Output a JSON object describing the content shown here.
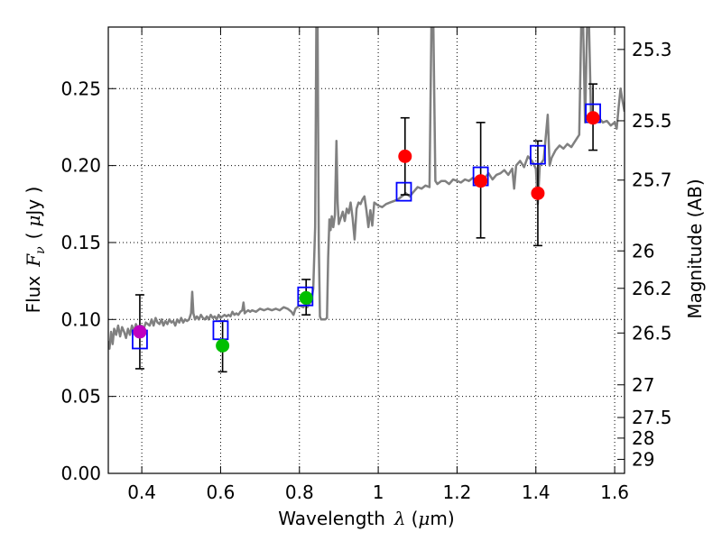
{
  "chart_data": {
    "type": "scatter",
    "xlabel": "Wavelength",
    "xlabel_symbol": "λ",
    "xlabel_unit_open": "(",
    "xlabel_unit_mu": "μ",
    "xlabel_unit_rest": "m)",
    "ylabel": "Flux",
    "ylabel_symbol": "F",
    "ylabel_symbol_sub": "ν",
    "ylabel_unit_open": "(",
    "ylabel_unit_mu": "μ",
    "ylabel_unit_rest": "Jy )",
    "y2label": "Magnitude (AB)",
    "xlim": [
      0.315,
      1.625
    ],
    "ylim": [
      0.0,
      0.29
    ],
    "grid": true,
    "x_ticks": [
      {
        "value": 0.4,
        "label": "0.4"
      },
      {
        "value": 0.6,
        "label": "0.6"
      },
      {
        "value": 0.8,
        "label": "0.8"
      },
      {
        "value": 1.0,
        "label": "1"
      },
      {
        "value": 1.2,
        "label": "1.2"
      },
      {
        "value": 1.4,
        "label": "1.4"
      },
      {
        "value": 1.6,
        "label": "1.6"
      }
    ],
    "y_ticks": [
      {
        "value": 0.0,
        "label": "0.00"
      },
      {
        "value": 0.05,
        "label": "0.05"
      },
      {
        "value": 0.1,
        "label": "0.10"
      },
      {
        "value": 0.15,
        "label": "0.15"
      },
      {
        "value": 0.2,
        "label": "0.20"
      },
      {
        "value": 0.25,
        "label": "0.25"
      }
    ],
    "y2_ticks": [
      {
        "mag": 25.3,
        "label": "25.3"
      },
      {
        "mag": 25.5,
        "label": "25.5"
      },
      {
        "mag": 25.7,
        "label": "25.7"
      },
      {
        "mag": 26.0,
        "label": "26"
      },
      {
        "mag": 26.2,
        "label": "26.2"
      },
      {
        "mag": 26.5,
        "label": "26.5"
      },
      {
        "mag": 27.0,
        "label": "27"
      },
      {
        "mag": 27.5,
        "label": "27.5"
      },
      {
        "mag": 28.0,
        "label": "28"
      },
      {
        "mag": 29.0,
        "label": "29"
      }
    ],
    "spectrum": {
      "name": "model spectrum",
      "color": "#808080",
      "points": [
        [
          0.315,
          0.086
        ],
        [
          0.318,
          0.081
        ],
        [
          0.322,
          0.092
        ],
        [
          0.326,
          0.084
        ],
        [
          0.33,
          0.094
        ],
        [
          0.335,
          0.09
        ],
        [
          0.34,
          0.096
        ],
        [
          0.345,
          0.089
        ],
        [
          0.35,
          0.095
        ],
        [
          0.355,
          0.092
        ],
        [
          0.36,
          0.088
        ],
        [
          0.365,
          0.094
        ],
        [
          0.37,
          0.09
        ],
        [
          0.375,
          0.096
        ],
        [
          0.38,
          0.092
        ],
        [
          0.385,
          0.097
        ],
        [
          0.39,
          0.094
        ],
        [
          0.395,
          0.093
        ],
        [
          0.4,
          0.096
        ],
        [
          0.405,
          0.094
        ],
        [
          0.41,
          0.098
        ],
        [
          0.415,
          0.097
        ],
        [
          0.42,
          0.096
        ],
        [
          0.425,
          0.1
        ],
        [
          0.43,
          0.096
        ],
        [
          0.435,
          0.101
        ],
        [
          0.44,
          0.098
        ],
        [
          0.445,
          0.097
        ],
        [
          0.45,
          0.1
        ],
        [
          0.455,
          0.096
        ],
        [
          0.46,
          0.099
        ],
        [
          0.465,
          0.097
        ],
        [
          0.47,
          0.1
        ],
        [
          0.475,
          0.098
        ],
        [
          0.48,
          0.099
        ],
        [
          0.485,
          0.096
        ],
        [
          0.49,
          0.1
        ],
        [
          0.495,
          0.098
        ],
        [
          0.5,
          0.101
        ],
        [
          0.505,
          0.098
        ],
        [
          0.51,
          0.1
        ],
        [
          0.515,
          0.099
        ],
        [
          0.52,
          0.1
        ],
        [
          0.525,
          0.104
        ],
        [
          0.528,
          0.118
        ],
        [
          0.531,
          0.104
        ],
        [
          0.535,
          0.1
        ],
        [
          0.54,
          0.102
        ],
        [
          0.545,
          0.1
        ],
        [
          0.55,
          0.103
        ],
        [
          0.555,
          0.101
        ],
        [
          0.56,
          0.1
        ],
        [
          0.565,
          0.102
        ],
        [
          0.57,
          0.1
        ],
        [
          0.575,
          0.103
        ],
        [
          0.58,
          0.101
        ],
        [
          0.585,
          0.102
        ],
        [
          0.59,
          0.1
        ],
        [
          0.595,
          0.103
        ],
        [
          0.6,
          0.101
        ],
        [
          0.605,
          0.102
        ],
        [
          0.61,
          0.103
        ],
        [
          0.615,
          0.102
        ],
        [
          0.62,
          0.103
        ],
        [
          0.625,
          0.102
        ],
        [
          0.63,
          0.105
        ],
        [
          0.635,
          0.103
        ],
        [
          0.64,
          0.104
        ],
        [
          0.645,
          0.103
        ],
        [
          0.65,
          0.105
        ],
        [
          0.655,
          0.106
        ],
        [
          0.658,
          0.111
        ],
        [
          0.661,
          0.104
        ],
        [
          0.665,
          0.105
        ],
        [
          0.67,
          0.106
        ],
        [
          0.675,
          0.105
        ],
        [
          0.68,
          0.106
        ],
        [
          0.69,
          0.105
        ],
        [
          0.7,
          0.107
        ],
        [
          0.71,
          0.106
        ],
        [
          0.72,
          0.107
        ],
        [
          0.73,
          0.106
        ],
        [
          0.74,
          0.107
        ],
        [
          0.75,
          0.106
        ],
        [
          0.76,
          0.108
        ],
        [
          0.77,
          0.107
        ],
        [
          0.78,
          0.105
        ],
        [
          0.785,
          0.103
        ],
        [
          0.79,
          0.107
        ],
        [
          0.8,
          0.109
        ],
        [
          0.81,
          0.108
        ],
        [
          0.815,
          0.11
        ],
        [
          0.82,
          0.108
        ],
        [
          0.83,
          0.112
        ],
        [
          0.835,
          0.12
        ],
        [
          0.84,
          0.16
        ],
        [
          0.843,
          0.29
        ],
        [
          0.846,
          0.29
        ],
        [
          0.849,
          0.15
        ],
        [
          0.852,
          0.102
        ],
        [
          0.855,
          0.1
        ],
        [
          0.86,
          0.1
        ],
        [
          0.865,
          0.1
        ],
        [
          0.87,
          0.101
        ],
        [
          0.873,
          0.14
        ],
        [
          0.876,
          0.165
        ],
        [
          0.879,
          0.158
        ],
        [
          0.882,
          0.167
        ],
        [
          0.886,
          0.16
        ],
        [
          0.89,
          0.168
        ],
        [
          0.894,
          0.216
        ],
        [
          0.897,
          0.176
        ],
        [
          0.9,
          0.162
        ],
        [
          0.905,
          0.166
        ],
        [
          0.91,
          0.17
        ],
        [
          0.915,
          0.164
        ],
        [
          0.92,
          0.172
        ],
        [
          0.925,
          0.169
        ],
        [
          0.93,
          0.176
        ],
        [
          0.935,
          0.166
        ],
        [
          0.94,
          0.152
        ],
        [
          0.945,
          0.172
        ],
        [
          0.95,
          0.176
        ],
        [
          0.955,
          0.175
        ],
        [
          0.96,
          0.178
        ],
        [
          0.965,
          0.18
        ],
        [
          0.97,
          0.171
        ],
        [
          0.975,
          0.16
        ],
        [
          0.98,
          0.171
        ],
        [
          0.985,
          0.161
        ],
        [
          0.99,
          0.176
        ],
        [
          1.0,
          0.174
        ],
        [
          1.01,
          0.173
        ],
        [
          1.02,
          0.175
        ],
        [
          1.03,
          0.176
        ],
        [
          1.04,
          0.177
        ],
        [
          1.05,
          0.178
        ],
        [
          1.06,
          0.18
        ],
        [
          1.07,
          0.182
        ],
        [
          1.08,
          0.18
        ],
        [
          1.09,
          0.183
        ],
        [
          1.1,
          0.186
        ],
        [
          1.11,
          0.185
        ],
        [
          1.12,
          0.187
        ],
        [
          1.13,
          0.186
        ],
        [
          1.135,
          0.29
        ],
        [
          1.14,
          0.29
        ],
        [
          1.145,
          0.19
        ],
        [
          1.15,
          0.188
        ],
        [
          1.16,
          0.19
        ],
        [
          1.17,
          0.19
        ],
        [
          1.18,
          0.188
        ],
        [
          1.19,
          0.191
        ],
        [
          1.2,
          0.19
        ],
        [
          1.21,
          0.189
        ],
        [
          1.22,
          0.191
        ],
        [
          1.23,
          0.19
        ],
        [
          1.24,
          0.192
        ],
        [
          1.25,
          0.19
        ],
        [
          1.26,
          0.193
        ],
        [
          1.27,
          0.192
        ],
        [
          1.28,
          0.195
        ],
        [
          1.29,
          0.191
        ],
        [
          1.3,
          0.194
        ],
        [
          1.31,
          0.195
        ],
        [
          1.32,
          0.197
        ],
        [
          1.33,
          0.194
        ],
        [
          1.34,
          0.198
        ],
        [
          1.345,
          0.185
        ],
        [
          1.35,
          0.2
        ],
        [
          1.36,
          0.203
        ],
        [
          1.37,
          0.199
        ],
        [
          1.38,
          0.206
        ],
        [
          1.39,
          0.203
        ],
        [
          1.4,
          0.198
        ],
        [
          1.405,
          0.175
        ],
        [
          1.41,
          0.2
        ],
        [
          1.42,
          0.204
        ],
        [
          1.43,
          0.233
        ],
        [
          1.435,
          0.2
        ],
        [
          1.44,
          0.205
        ],
        [
          1.45,
          0.21
        ],
        [
          1.46,
          0.213
        ],
        [
          1.47,
          0.211
        ],
        [
          1.48,
          0.214
        ],
        [
          1.49,
          0.212
        ],
        [
          1.5,
          0.216
        ],
        [
          1.51,
          0.22
        ],
        [
          1.515,
          0.29
        ],
        [
          1.52,
          0.29
        ],
        [
          1.525,
          0.228
        ],
        [
          1.53,
          0.29
        ],
        [
          1.535,
          0.29
        ],
        [
          1.54,
          0.232
        ],
        [
          1.55,
          0.229
        ],
        [
          1.56,
          0.231
        ],
        [
          1.57,
          0.228
        ],
        [
          1.58,
          0.229
        ],
        [
          1.59,
          0.226
        ],
        [
          1.6,
          0.228
        ],
        [
          1.605,
          0.224
        ],
        [
          1.61,
          0.238
        ],
        [
          1.615,
          0.25
        ],
        [
          1.62,
          0.242
        ],
        [
          1.625,
          0.235
        ]
      ]
    },
    "model_photometry": {
      "name": "model photometry",
      "marker": "open-square",
      "color": "#0000ff",
      "points": [
        [
          0.395,
          0.087
        ],
        [
          0.6,
          0.093
        ],
        [
          0.815,
          0.115
        ],
        [
          1.065,
          0.183
        ],
        [
          1.26,
          0.193
        ],
        [
          1.405,
          0.207
        ],
        [
          1.545,
          0.234
        ]
      ]
    },
    "observations": [
      {
        "x": 0.395,
        "y": 0.092,
        "err_low": 0.068,
        "err_high": 0.116,
        "color": "#bf00bf"
      },
      {
        "x": 0.605,
        "y": 0.083,
        "err_low": 0.066,
        "err_high": 0.099,
        "color": "#00bf00"
      },
      {
        "x": 0.817,
        "y": 0.114,
        "err_low": 0.103,
        "err_high": 0.126,
        "color": "#00bf00"
      },
      {
        "x": 1.068,
        "y": 0.206,
        "err_low": 0.181,
        "err_high": 0.231,
        "color": "#ff0000"
      },
      {
        "x": 1.26,
        "y": 0.19,
        "err_low": 0.153,
        "err_high": 0.228,
        "color": "#ff0000"
      },
      {
        "x": 1.405,
        "y": 0.182,
        "err_low": 0.148,
        "err_high": 0.216,
        "color": "#ff0000"
      },
      {
        "x": 1.545,
        "y": 0.231,
        "err_low": 0.21,
        "err_high": 0.253,
        "color": "#ff0000"
      }
    ]
  }
}
